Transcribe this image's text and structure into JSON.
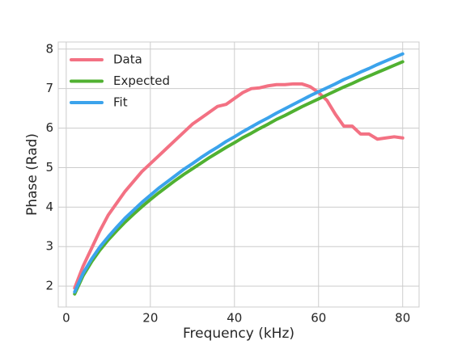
{
  "chart_data": {
    "type": "line",
    "xlabel": "Frequency (kHz)",
    "ylabel": "Phase (Rad)",
    "x": [
      2,
      4,
      6,
      8,
      10,
      12,
      14,
      16,
      18,
      20,
      22,
      24,
      26,
      28,
      30,
      32,
      34,
      36,
      38,
      40,
      42,
      44,
      46,
      48,
      50,
      52,
      54,
      56,
      58,
      60,
      62,
      64,
      66,
      68,
      70,
      72,
      74,
      76,
      78,
      80
    ],
    "series": [
      {
        "name": "Data",
        "color": "#f37183",
        "values": [
          1.95,
          2.5,
          2.95,
          3.4,
          3.8,
          4.1,
          4.4,
          4.65,
          4.9,
          5.1,
          5.3,
          5.5,
          5.7,
          5.9,
          6.1,
          6.25,
          6.4,
          6.55,
          6.6,
          6.75,
          6.9,
          7.0,
          7.02,
          7.07,
          7.1,
          7.1,
          7.12,
          7.12,
          7.05,
          6.9,
          6.7,
          6.35,
          6.05,
          6.05,
          5.85,
          5.85,
          5.72,
          5.75,
          5.78,
          5.75
        ]
      },
      {
        "name": "Expected",
        "color": "#50b131",
        "values": [
          1.8,
          2.26,
          2.61,
          2.91,
          3.17,
          3.4,
          3.62,
          3.82,
          4.01,
          4.19,
          4.36,
          4.52,
          4.68,
          4.83,
          4.97,
          5.11,
          5.25,
          5.38,
          5.51,
          5.63,
          5.76,
          5.87,
          5.99,
          6.1,
          6.22,
          6.32,
          6.43,
          6.54,
          6.64,
          6.74,
          6.84,
          6.94,
          7.04,
          7.13,
          7.23,
          7.32,
          7.41,
          7.5,
          7.59,
          7.68
        ]
      },
      {
        "name": "Fit",
        "color": "#3ba3ec",
        "values": [
          1.85,
          2.32,
          2.68,
          2.99,
          3.25,
          3.49,
          3.72,
          3.92,
          4.12,
          4.3,
          4.48,
          4.64,
          4.8,
          4.96,
          5.1,
          5.25,
          5.39,
          5.52,
          5.66,
          5.78,
          5.91,
          6.03,
          6.15,
          6.26,
          6.38,
          6.49,
          6.6,
          6.71,
          6.82,
          6.92,
          7.02,
          7.12,
          7.23,
          7.32,
          7.42,
          7.51,
          7.61,
          7.7,
          7.79,
          7.88
        ]
      }
    ],
    "xlim": [
      -1.9,
      83.9
    ],
    "xticks": [
      0,
      20,
      40,
      60,
      80
    ],
    "ylim": [
      1.47,
      8.18
    ],
    "yticks": [
      2,
      3,
      4,
      5,
      6,
      7,
      8
    ],
    "grid": true,
    "legend": "upper left"
  }
}
